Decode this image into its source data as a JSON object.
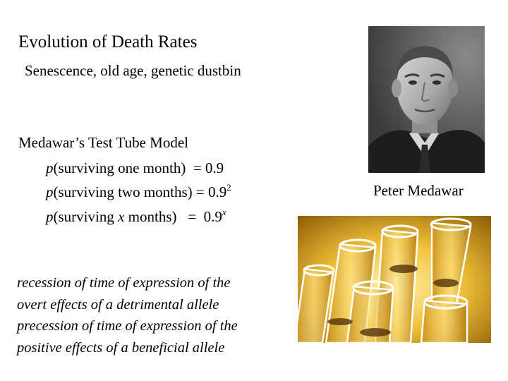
{
  "slide": {
    "title": "Evolution of Death Rates",
    "subtitle": "Senescence, old age, genetic dustbin",
    "model_heading": "Medawar’s Test Tube Model",
    "equations": [
      {
        "p": "p",
        "condition": "(surviving one month)",
        "equals": "= 0.9",
        "exponent": ""
      },
      {
        "p": "p",
        "condition": "(surviving two months)",
        "equals": "= 0.9",
        "exponent": "2"
      },
      {
        "p": "p",
        "condition_prefix": "(surviving",
        "variable": "x",
        "condition_suffix": "months)",
        "equals": "=  0.9",
        "exponent": "x"
      }
    ],
    "notes": [
      "recession of time of expression of the",
      "overt effects of a detrimental allele",
      "precession of time of expression of the",
      "positive effects of a beneficial allele"
    ],
    "portrait_caption": "Peter Medawar"
  },
  "images": {
    "portrait": "grayscale-portrait-photo",
    "tubes": "amber-test-tubes-photo"
  }
}
